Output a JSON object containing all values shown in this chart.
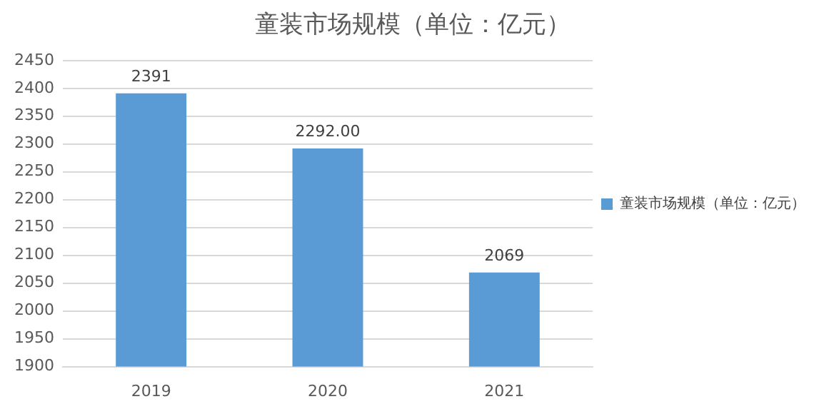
{
  "chart_data": {
    "type": "bar",
    "title": "童装市场规模（单位：亿元）",
    "categories": [
      "2019",
      "2020",
      "2021"
    ],
    "series": [
      {
        "name": "童装市场规模（单位：亿元）",
        "color": "#5b9bd5",
        "values": [
          2391,
          2292,
          2069
        ],
        "value_labels": [
          "2391",
          "2292.00",
          "2069"
        ]
      }
    ],
    "ylim": [
      1900,
      2450
    ],
    "yticks": [
      1900,
      1950,
      2000,
      2050,
      2100,
      2150,
      2200,
      2250,
      2300,
      2350,
      2400,
      2450
    ],
    "grid": "y",
    "legend": "right"
  }
}
